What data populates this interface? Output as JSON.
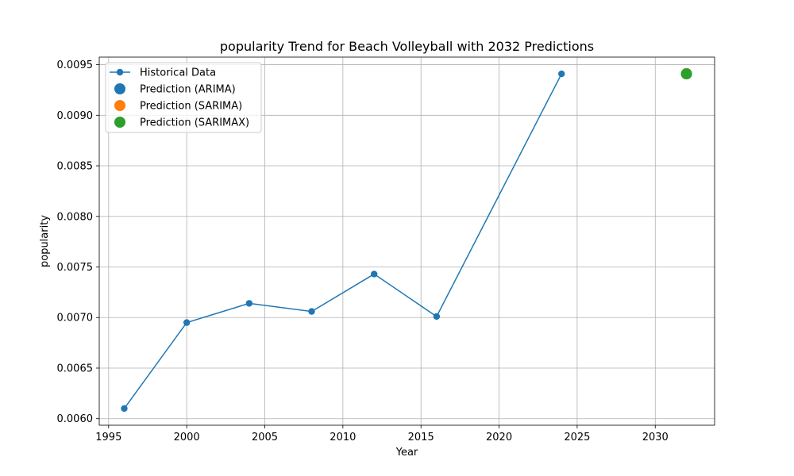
{
  "chart_data": {
    "type": "line",
    "title": "popularity Trend for Beach Volleyball with 2032 Predictions",
    "xlabel": "Year",
    "ylabel": "popularity",
    "xlim": [
      1994.4,
      2033.8
    ],
    "ylim": [
      0.005935,
      0.009575
    ],
    "x_ticks": [
      1995,
      2000,
      2005,
      2010,
      2015,
      2020,
      2025,
      2030
    ],
    "y_ticks": [
      0.006,
      0.0065,
      0.007,
      0.0075,
      0.008,
      0.0085,
      0.009,
      0.0095
    ],
    "y_tick_labels": [
      "0.0060",
      "0.0065",
      "0.0070",
      "0.0075",
      "0.0080",
      "0.0085",
      "0.0090",
      "0.0095"
    ],
    "grid": true,
    "legend_position": "top-left",
    "series": [
      {
        "name": "Historical Data",
        "kind": "line-marker",
        "color": "#1f77b4",
        "x": [
          1996,
          2000,
          2004,
          2008,
          2012,
          2016,
          2024
        ],
        "y": [
          0.0061,
          0.00695,
          0.00714,
          0.00706,
          0.00743,
          0.00701,
          0.00941
        ]
      },
      {
        "name": "Prediction (ARIMA)",
        "kind": "point",
        "color": "#1f77b4",
        "x": [
          2032
        ],
        "y": [
          0.00941
        ]
      },
      {
        "name": "Prediction (SARIMA)",
        "kind": "point",
        "color": "#ff7f0e",
        "x": [
          2032
        ],
        "y": [
          0.00941
        ]
      },
      {
        "name": "Prediction (SARIMAX)",
        "kind": "point",
        "color": "#2ca02c",
        "x": [
          2032
        ],
        "y": [
          0.00941
        ]
      }
    ]
  }
}
